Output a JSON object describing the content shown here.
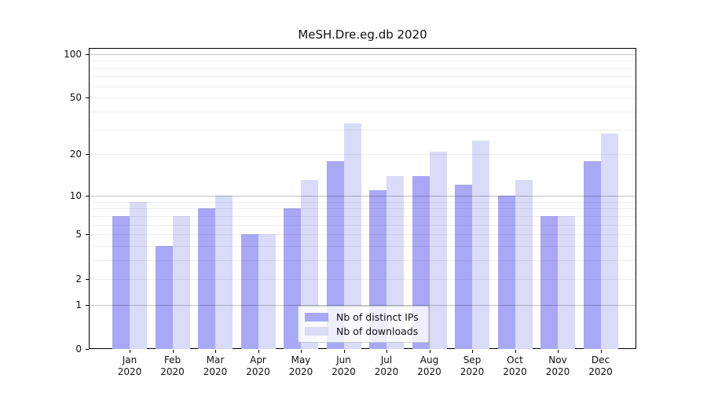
{
  "title": "MeSH.Dre.eg.db 2020",
  "chart_data": {
    "type": "bar",
    "title": "MeSH.Dre.eg.db 2020",
    "xlabel": "",
    "ylabel": "",
    "scale": "log1p",
    "categories": [
      "Jan",
      "Feb",
      "Mar",
      "Apr",
      "May",
      "Jun",
      "Jul",
      "Aug",
      "Sep",
      "Oct",
      "Nov",
      "Dec"
    ],
    "year": "2020",
    "series": [
      {
        "name": "Nb of distinct IPs",
        "color": "#a8a8f6",
        "values": [
          7,
          4,
          8,
          5,
          8,
          18,
          11,
          14,
          12,
          10,
          7,
          18
        ]
      },
      {
        "name": "Nb of downloads",
        "color": "#dadaf9",
        "values": [
          9,
          7,
          10,
          5,
          13,
          33,
          14,
          21,
          25,
          13,
          7,
          28
        ]
      }
    ],
    "y_ticks": [
      0,
      1,
      2,
      5,
      10,
      20,
      50,
      100
    ],
    "y_max_at_top": 110,
    "major_gridlines": [
      1,
      10,
      100
    ],
    "minor_gridlines": [
      2,
      3,
      4,
      5,
      6,
      7,
      8,
      9,
      20,
      30,
      40,
      50,
      60,
      70,
      80,
      90
    ],
    "legend_position": "lower center",
    "grid_on": true,
    "colors": {
      "axis": "#000000",
      "major_grid": "#c0c0c0",
      "minor_grid": "#ececec",
      "background": "#ffffff"
    }
  }
}
